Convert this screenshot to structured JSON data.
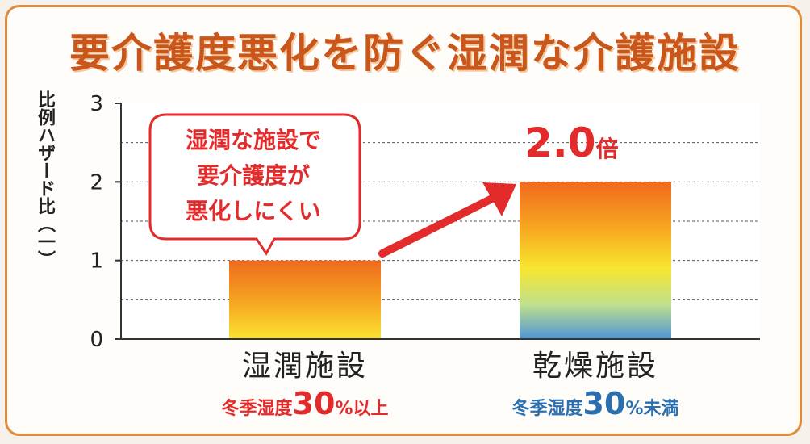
{
  "title": "要介護度悪化を防ぐ湿潤な介護施設",
  "chart_data": {
    "type": "bar",
    "ylabel": "比例ハザード比（一）",
    "ylim": [
      0,
      3
    ],
    "yticks": [
      0,
      1,
      2,
      3
    ],
    "grid": "dashed horizontal at 0.5 steps",
    "categories": [
      "湿潤施設",
      "乾燥施設"
    ],
    "values": [
      1.0,
      2.0
    ],
    "sublabels": [
      {
        "pre": "冬季湿度",
        "num": "30",
        "post": "%以上",
        "color": "#e32b2b"
      },
      {
        "pre": "冬季湿度",
        "num": "30",
        "post": "%未満",
        "color": "#2a6fb0"
      }
    ],
    "annotation": {
      "bubble": [
        "湿潤な施設で",
        "要介護度が",
        "悪化しにくい"
      ],
      "multiplier_value": "2.0",
      "multiplier_unit": "倍"
    }
  },
  "colors": {
    "accent": "#e32b2b",
    "frame": "#e08a3c",
    "title": "#c9561a"
  }
}
